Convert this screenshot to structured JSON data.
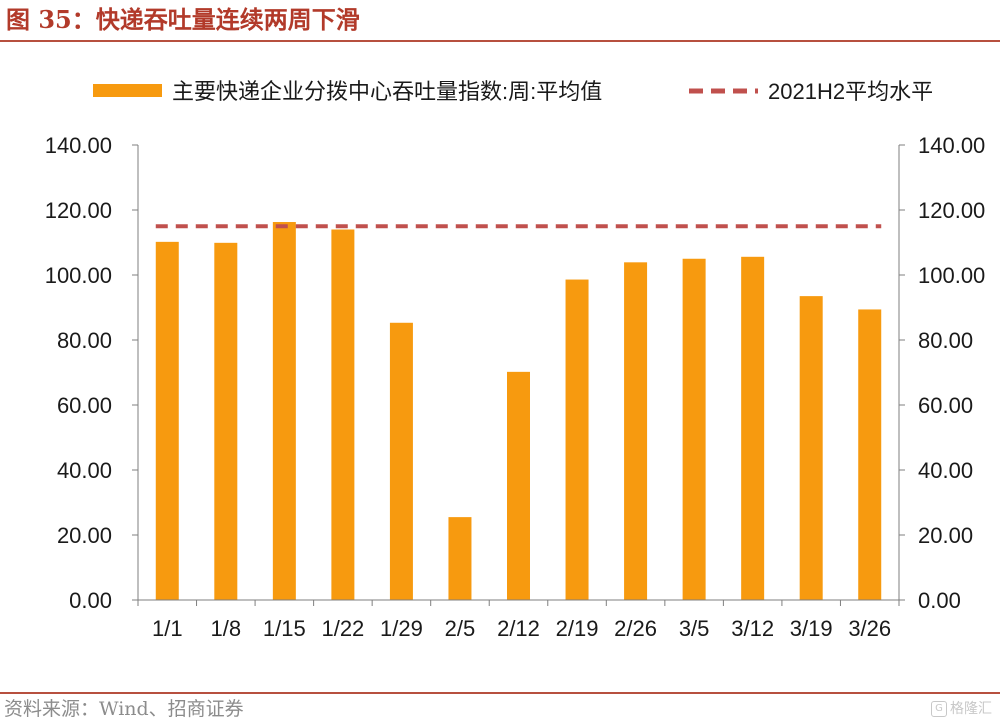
{
  "figure": {
    "title": "图 35：快递吞吐量连续两周下滑",
    "source": "资料来源：Wind、招商证券",
    "watermark": "格隆汇"
  },
  "colors": {
    "bar": "#f79a0f",
    "dashed_line": "#c0504d",
    "title": "#b23a2a",
    "rule": "#b7503f",
    "axis": "#7f7f7f"
  },
  "chart_data": {
    "type": "bar",
    "categories": [
      "1/1",
      "1/8",
      "1/15",
      "1/22",
      "1/29",
      "2/5",
      "2/12",
      "2/19",
      "2/26",
      "3/5",
      "3/12",
      "3/19",
      "3/26"
    ],
    "series": [
      {
        "name": "主要快递企业分拨中心吞吐量指数:周:平均值",
        "type": "bar",
        "values": [
          110.2,
          109.9,
          116.3,
          114.0,
          85.3,
          25.5,
          70.2,
          98.6,
          103.9,
          105.0,
          105.6,
          93.5,
          89.4
        ]
      },
      {
        "name": "2021H2平均水平",
        "type": "line",
        "style": "dashed",
        "value": 115.0
      }
    ],
    "ylim": [
      0,
      140
    ],
    "y_ticks": [
      "0.00",
      "20.00",
      "40.00",
      "60.00",
      "80.00",
      "100.00",
      "120.00",
      "140.00"
    ],
    "y_tick_values": [
      0,
      20,
      40,
      60,
      80,
      100,
      120,
      140
    ],
    "secondary_y_ticks": [
      "0.00",
      "20.00",
      "40.00",
      "60.00",
      "80.00",
      "100.00",
      "120.00",
      "140.00"
    ],
    "legend_position": "top",
    "grid": false
  }
}
